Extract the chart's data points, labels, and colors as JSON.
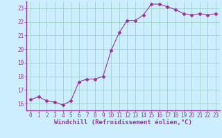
{
  "x": [
    0,
    1,
    2,
    3,
    4,
    5,
    6,
    7,
    8,
    9,
    10,
    11,
    12,
    13,
    14,
    15,
    16,
    17,
    18,
    19,
    20,
    21,
    22,
    23
  ],
  "y": [
    16.3,
    16.5,
    16.2,
    16.1,
    15.9,
    16.2,
    17.6,
    17.8,
    17.8,
    18.0,
    19.9,
    21.2,
    22.1,
    22.1,
    22.5,
    23.3,
    23.3,
    23.1,
    22.9,
    22.6,
    22.5,
    22.6,
    22.5,
    22.6
  ],
  "line_color": "#993399",
  "marker": "D",
  "marker_size": 2.5,
  "bg_color": "#cceeff",
  "grid_color": "#99ccbb",
  "xlabel": "Windchill (Refroidissement éolien,°C)",
  "xlim": [
    -0.5,
    23.5
  ],
  "ylim": [
    15.5,
    23.5
  ],
  "yticks": [
    16,
    17,
    18,
    19,
    20,
    21,
    22,
    23
  ],
  "xticks": [
    0,
    1,
    2,
    3,
    4,
    5,
    6,
    7,
    8,
    9,
    10,
    11,
    12,
    13,
    14,
    15,
    16,
    17,
    18,
    19,
    20,
    21,
    22,
    23
  ],
  "tick_color": "#993399",
  "label_color": "#993399",
  "spine_color": "#993399",
  "font_size_ticks": 5.5,
  "font_size_xlabel": 6.5
}
